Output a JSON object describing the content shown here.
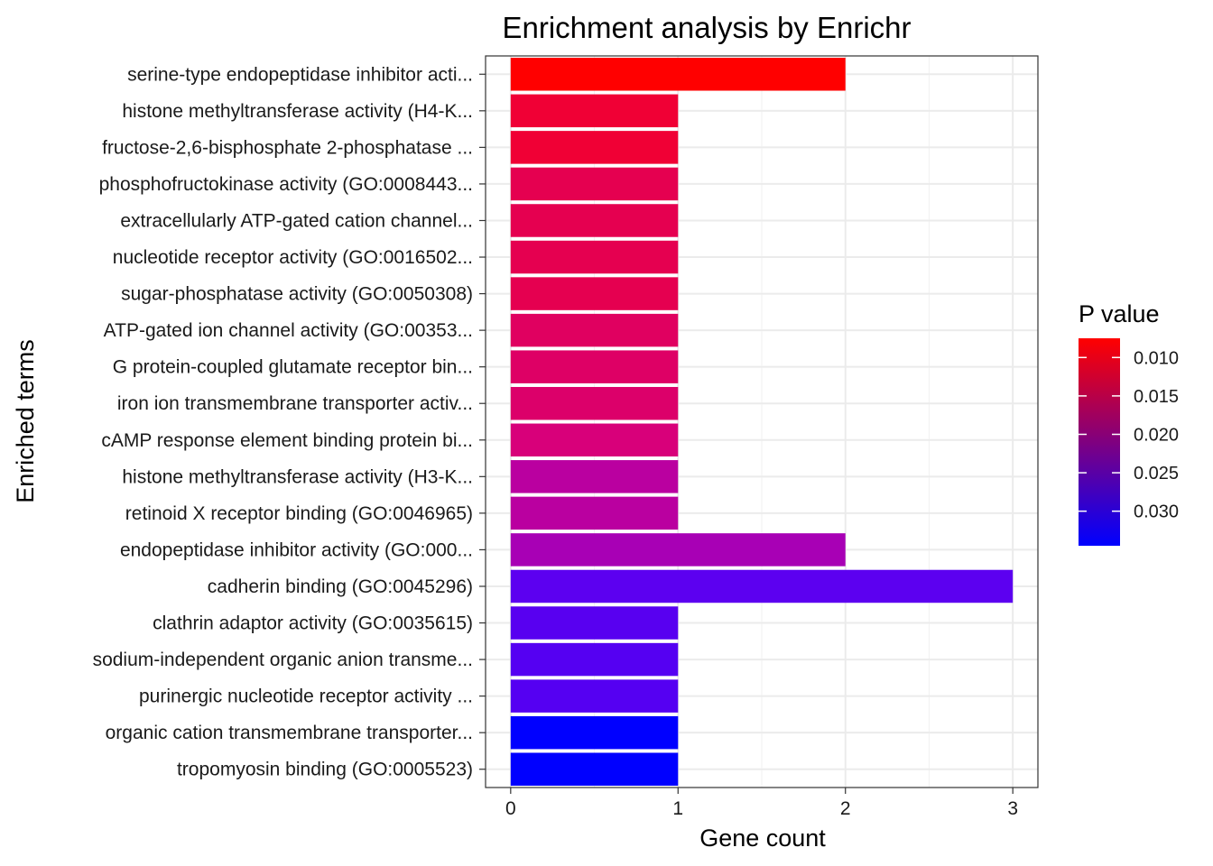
{
  "chart_data": {
    "type": "bar",
    "orientation": "horizontal",
    "title": "Enrichment analysis by Enrichr",
    "xlabel": "Gene count",
    "ylabel": "Enriched terms",
    "xlim": [
      -0.15,
      3.15
    ],
    "xticks": [
      0,
      1,
      2,
      3
    ],
    "grid": true,
    "categories": [
      "serine-type endopeptidase inhibitor acti...",
      "histone methyltransferase activity (H4-K...",
      "fructose-2,6-bisphosphate 2-phosphatase ...",
      "phosphofructokinase activity (GO:0008443...",
      "extracellularly ATP-gated cation channel...",
      "nucleotide receptor activity (GO:0016502...",
      "sugar-phosphatase activity (GO:0050308)",
      "ATP-gated ion channel activity (GO:00353...",
      "G protein-coupled glutamate receptor bin...",
      "iron ion transmembrane transporter activ...",
      "cAMP response element binding protein bi...",
      "histone methyltransferase activity (H3-K...",
      "retinoid X receptor binding (GO:0046965)",
      "endopeptidase inhibitor activity (GO:000...",
      "cadherin binding (GO:0045296)",
      "clathrin adaptor activity (GO:0035615)",
      "sodium-independent organic anion transme...",
      "purinergic nucleotide receptor activity ...",
      "organic cation transmembrane transporter...",
      "tropomyosin binding (GO:0005523)"
    ],
    "values": [
      2,
      1,
      1,
      1,
      1,
      1,
      1,
      1,
      1,
      1,
      1,
      1,
      1,
      2,
      3,
      1,
      1,
      1,
      1,
      1
    ],
    "p_values": [
      0.0075,
      0.0125,
      0.0125,
      0.0145,
      0.0145,
      0.0145,
      0.0145,
      0.0155,
      0.016,
      0.0165,
      0.0175,
      0.021,
      0.021,
      0.023,
      0.0295,
      0.03,
      0.0305,
      0.0305,
      0.0345,
      0.0345
    ],
    "colors": [
      "#ff0000",
      "#f00035",
      "#f00035",
      "#e50050",
      "#e50050",
      "#e50050",
      "#e50050",
      "#e00060",
      "#de0065",
      "#dc006a",
      "#d8007a",
      "#ba00a0",
      "#ba00a0",
      "#a800b5",
      "#5c00f0",
      "#5800f0",
      "#5500f2",
      "#5500f2",
      "#0000ff",
      "#0000ff"
    ],
    "legend": {
      "title": "P value",
      "placement": "right",
      "ticks": [
        "0.010",
        "0.015",
        "0.020",
        "0.025",
        "0.030"
      ],
      "tick_values": [
        0.01,
        0.015,
        0.02,
        0.025,
        0.03
      ],
      "range": [
        0.0075,
        0.0345
      ],
      "color_low": "#ff0000",
      "color_high": "#0000ff"
    }
  }
}
